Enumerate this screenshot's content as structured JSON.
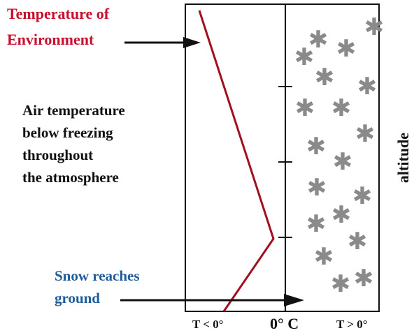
{
  "labels": {
    "environment_title_line1": "Temperature of",
    "environment_title_line2": "Environment",
    "air_line1": "Air temperature",
    "air_line2": "below freezing",
    "air_line3": "throughout",
    "air_line4": "the atmosphere",
    "snow_line1": "Snow reaches",
    "snow_line2": "ground",
    "axis_left": "T < 0°",
    "axis_center": "0° C",
    "axis_right": "T > 0°",
    "altitude": "altitude"
  },
  "colors": {
    "temperature_line": "#a0101f",
    "environment_text": "#c8102e",
    "snow_text": "#1f5c99",
    "snowflake": "#8a8a8a"
  },
  "symbols": {
    "snowflake": "✱"
  }
}
